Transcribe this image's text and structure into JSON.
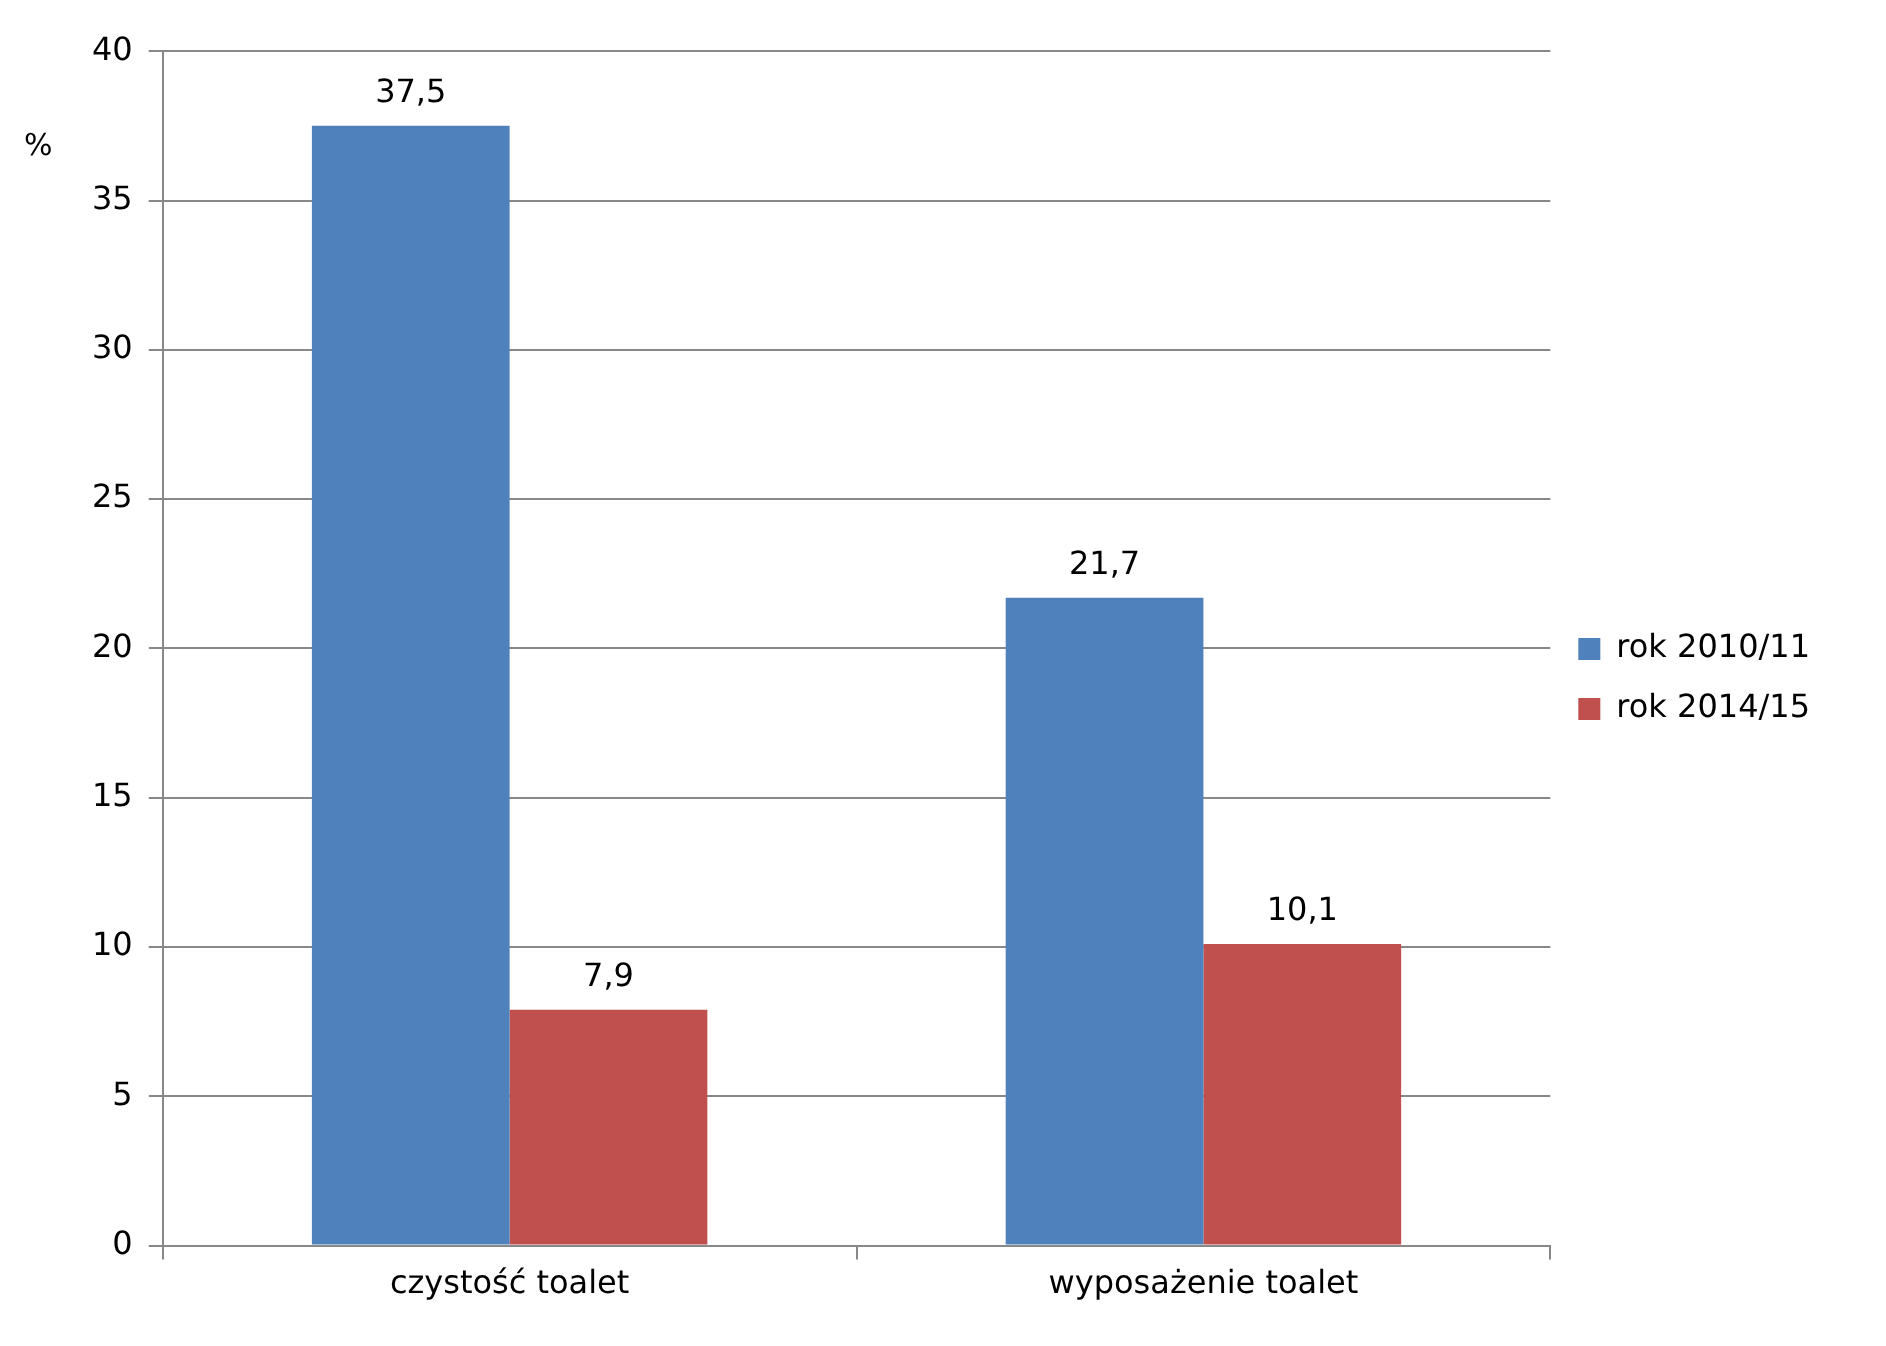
{
  "chart_data": {
    "type": "bar",
    "ylabel": "%",
    "categories": [
      "czystość toalet",
      "wyposażenie toalet"
    ],
    "series": [
      {
        "name": "rok 2010/11",
        "color": "#4f81bd",
        "values": [
          37.5,
          21.7
        ],
        "value_labels": [
          "37,5",
          "21,7"
        ]
      },
      {
        "name": "rok 2014/15",
        "color": "#c0504d",
        "values": [
          7.9,
          10.1
        ],
        "value_labels": [
          "7,9",
          "10,1"
        ]
      }
    ],
    "ylim": [
      0,
      40
    ],
    "yticks": [
      0,
      5,
      10,
      15,
      20,
      25,
      30,
      35,
      40
    ],
    "grid": "y",
    "legend": "right"
  }
}
